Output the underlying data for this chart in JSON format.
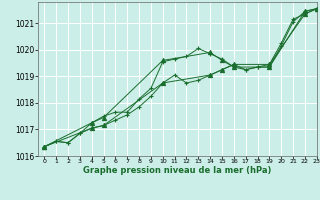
{
  "xlabel": "Graphe pression niveau de la mer (hPa)",
  "ylim": [
    1016.0,
    1021.8
  ],
  "xlim": [
    -0.5,
    23
  ],
  "xticks": [
    0,
    1,
    2,
    3,
    4,
    5,
    6,
    7,
    8,
    9,
    10,
    11,
    12,
    13,
    14,
    15,
    16,
    17,
    18,
    19,
    20,
    21,
    22,
    23
  ],
  "yticks": [
    1016,
    1017,
    1018,
    1019,
    1020,
    1021
  ],
  "background_color": "#cceee8",
  "grid_color": "#ffffff",
  "line_color": "#1a6e2e",
  "series": [
    {
      "x": [
        0,
        1,
        2,
        3,
        4,
        5,
        6,
        7,
        8,
        9,
        10,
        11,
        12,
        13,
        14,
        15,
        16,
        17,
        18,
        19,
        20,
        21,
        22,
        23
      ],
      "y": [
        1016.35,
        1016.55,
        1016.5,
        1016.85,
        1017.25,
        1017.5,
        1017.65,
        1017.65,
        1018.15,
        1018.55,
        1019.55,
        1019.65,
        1019.75,
        1020.05,
        1019.85,
        1019.65,
        1019.35,
        1019.25,
        1019.35,
        1019.35,
        1020.15,
        1021.05,
        1021.45,
        1021.55
      ],
      "marker": "+",
      "ms": 3.5
    },
    {
      "x": [
        0,
        1,
        2,
        3,
        4,
        5,
        6,
        7,
        8,
        9,
        10,
        11,
        12,
        13,
        14,
        15,
        16,
        17,
        18,
        19,
        20,
        21,
        22,
        23
      ],
      "y": [
        1016.35,
        1016.55,
        1016.5,
        1016.85,
        1017.05,
        1017.15,
        1017.35,
        1017.55,
        1017.85,
        1018.25,
        1018.75,
        1019.05,
        1018.75,
        1018.85,
        1019.05,
        1019.25,
        1019.45,
        1019.25,
        1019.35,
        1019.45,
        1020.25,
        1021.15,
        1021.35,
        1021.55
      ],
      "marker": "+",
      "ms": 3.5
    },
    {
      "x": [
        0,
        4,
        5,
        10,
        14,
        15,
        16,
        19,
        22,
        23
      ],
      "y": [
        1016.35,
        1017.25,
        1017.45,
        1019.6,
        1019.9,
        1019.6,
        1019.35,
        1019.35,
        1021.45,
        1021.55
      ],
      "marker": "^",
      "ms": 3.0
    },
    {
      "x": [
        0,
        4,
        5,
        10,
        14,
        15,
        16,
        19,
        22,
        23
      ],
      "y": [
        1016.35,
        1017.05,
        1017.15,
        1018.75,
        1019.05,
        1019.25,
        1019.45,
        1019.45,
        1021.35,
        1021.55
      ],
      "marker": "^",
      "ms": 3.0
    }
  ]
}
